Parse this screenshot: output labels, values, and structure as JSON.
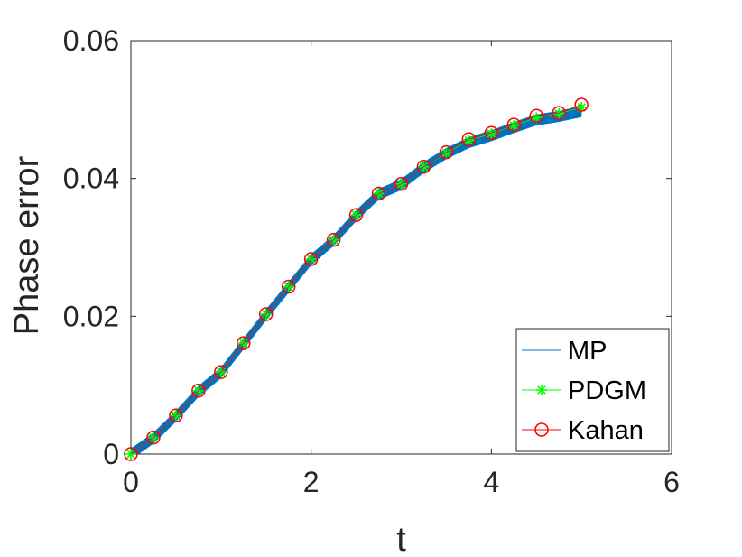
{
  "chart_data": {
    "type": "line",
    "xlabel": "t",
    "ylabel": "Phase error",
    "xlim": [
      0,
      6
    ],
    "ylim": [
      0,
      0.06
    ],
    "xticks": [
      "0",
      "2",
      "4",
      "6"
    ],
    "yticks": [
      "0",
      "0.02",
      "0.04",
      "0.06"
    ],
    "xtick_values": [
      0,
      2,
      4,
      6
    ],
    "ytick_values": [
      0,
      0.02,
      0.04,
      0.06
    ],
    "grid": false,
    "legend_position": "bottom-right",
    "x": [
      0,
      0.25,
      0.5,
      0.75,
      1.0,
      1.25,
      1.5,
      1.75,
      2.0,
      2.25,
      2.5,
      2.75,
      3.0,
      3.25,
      3.5,
      3.75,
      4.0,
      4.25,
      4.5,
      4.75,
      5.0
    ],
    "series": [
      {
        "name": "MP",
        "color": "#0072bd",
        "marker": "none",
        "oscillation": 0.0008,
        "values": [
          0,
          0.0023,
          0.0055,
          0.0091,
          0.0118,
          0.016,
          0.0202,
          0.0242,
          0.0282,
          0.031,
          0.0346,
          0.0377,
          0.0391,
          0.0416,
          0.0436,
          0.0452,
          0.0462,
          0.0474,
          0.0485,
          0.049,
          0.0497
        ]
      },
      {
        "name": "PDGM",
        "color": "#00ff00",
        "marker": "asterisk",
        "values": [
          0,
          0.0024,
          0.0056,
          0.0092,
          0.0119,
          0.0161,
          0.0203,
          0.0243,
          0.0283,
          0.0311,
          0.0347,
          0.0378,
          0.0392,
          0.0417,
          0.0437,
          0.0455,
          0.0465,
          0.0477,
          0.0488,
          0.0494,
          0.0503
        ]
      },
      {
        "name": "Kahan",
        "color": "#ff0000",
        "marker": "circle",
        "values": [
          0,
          0.0024,
          0.0056,
          0.0092,
          0.0119,
          0.0161,
          0.0203,
          0.0243,
          0.0283,
          0.0311,
          0.0347,
          0.0378,
          0.0392,
          0.0417,
          0.0438,
          0.0457,
          0.0466,
          0.0478,
          0.0491,
          0.0495,
          0.0507
        ]
      }
    ]
  }
}
